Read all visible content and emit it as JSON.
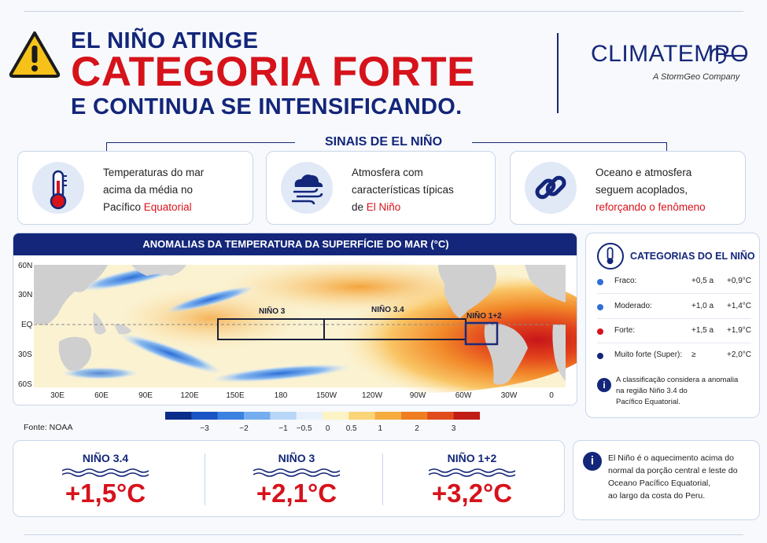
{
  "header": {
    "line1": "EL NIÑO ATINGE",
    "line2": "CATEGORIA FORTE",
    "line3": "E CONTINUA SE INTENSIFICANDO.",
    "brand": "CLIMATEMPO",
    "brand_sub": "A StormGeo Company"
  },
  "signals": {
    "title": "SINAIS DE EL NIÑO",
    "cards": [
      {
        "icon": "thermometer-icon",
        "line1": "Temperaturas do mar",
        "line2": "acima da média no",
        "line3a": "Pacífico ",
        "line3b": "Equatorial"
      },
      {
        "icon": "cloud-wind-icon",
        "line1": "Atmosfera com",
        "line2": "características típicas",
        "line3a": "de ",
        "line3b": "El Niño"
      },
      {
        "icon": "chain-link-icon",
        "line1": "Oceano e atmosfera",
        "line2": "seguem acoplados,",
        "line3a": "",
        "line3b": "reforçando o fenômeno"
      }
    ]
  },
  "map": {
    "title": "ANOMALIAS DA TEMPERATURA DA SUPERFÍCIE DO MAR (°C)",
    "lat_labels": [
      "60N",
      "30N",
      "EQ",
      "30S",
      "60S"
    ],
    "lon_labels": [
      "30E",
      "60E",
      "90E",
      "120E",
      "150E",
      "180",
      "150W",
      "120W",
      "90W",
      "60W",
      "30W",
      "0"
    ],
    "regions": [
      {
        "label": "NIÑO 3"
      },
      {
        "label": "NIÑO 3.4"
      },
      {
        "label": "NIÑO 1+2"
      }
    ],
    "colorbar_ticks": [
      "−3",
      "−2",
      "−1",
      "−0.5",
      "0",
      "0.5",
      "1",
      "2",
      "3"
    ],
    "colorbar_colors": [
      "#0b2d8a",
      "#1a54c4",
      "#3b82e0",
      "#74aef0",
      "#b8d6f7",
      "#e8f1fb",
      "#fdf3c4",
      "#fad479",
      "#f6ac3f",
      "#ef7d22",
      "#e04c1c",
      "#c21c17"
    ],
    "source": "Fonte: NOAA"
  },
  "categories": {
    "title": "CATEGORIAS DO EL NIÑO",
    "items": [
      {
        "name": "Fraco:",
        "a": "+0,5 a",
        "b": "+0,9°C",
        "color": "#2f6fd6"
      },
      {
        "name": "Moderado:",
        "a": "+1,0 a",
        "b": "+1,4°C",
        "color": "#2f6fd6"
      },
      {
        "name": "Forte:",
        "a": "+1,5 a",
        "b": "+1,9°C",
        "color": "#d6121b"
      },
      {
        "name": "Muito forte (Super):",
        "a": "≥",
        "b": "+2,0°C",
        "color": "#13267a"
      }
    ],
    "note_line1": "A classificação considera a anomalia",
    "note_line2": "na região Niño 3.4 do",
    "note_line3": "Pacífico Equatorial."
  },
  "values": [
    {
      "label": "NIÑO 3.4",
      "value": "+1,5°C"
    },
    {
      "label": "NIÑO 3",
      "value": "+2,1°C"
    },
    {
      "label": "NIÑO 1+2",
      "value": "+3,2°C"
    }
  ],
  "info": {
    "line1": "El Niño é o aquecimento acima do",
    "line2": "normal da porção central e leste do",
    "line3": "Oceano Pacífico Equatorial,",
    "line4": "ao largo da costa do Peru."
  }
}
